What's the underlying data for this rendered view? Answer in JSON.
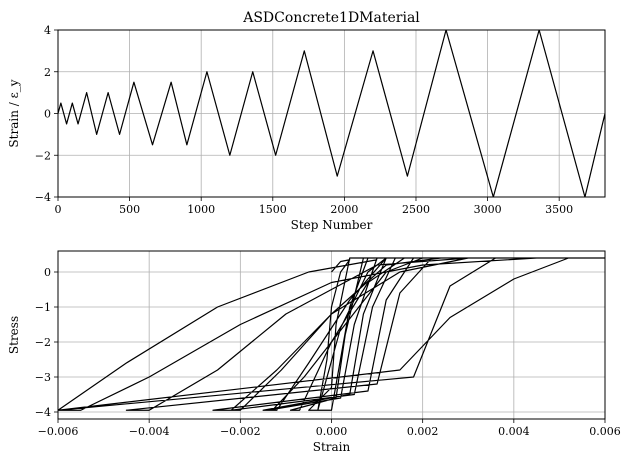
{
  "chart_data": [
    {
      "type": "line",
      "title": "ASDConcrete1DMaterial",
      "xlabel": "Step Number",
      "ylabel": "Strain / ε_y",
      "xlim": [
        0,
        3820
      ],
      "ylim": [
        -4,
        4
      ],
      "xticks": [
        0,
        500,
        1000,
        1500,
        2000,
        2500,
        3000,
        3500
      ],
      "xtick_labels": [
        "0",
        "500",
        "1000",
        "1500",
        "2000",
        "2500",
        "3000",
        "3500"
      ],
      "yticks": [
        -4,
        -2,
        0,
        2,
        4
      ],
      "ytick_labels": [
        "−4",
        "−2",
        "0",
        "2",
        "4"
      ],
      "grid": true,
      "series": [
        {
          "x": [
            0,
            20,
            60,
            100,
            140,
            200,
            270,
            350,
            430,
            530,
            660,
            790,
            900,
            1040,
            1200,
            1360,
            1520,
            1720,
            1950,
            2200,
            2440,
            2710,
            3040,
            3360,
            3680,
            3820
          ],
          "y": [
            0,
            0.5,
            -0.5,
            0.5,
            -0.5,
            1.0,
            -1.0,
            1.0,
            -1.0,
            1.5,
            -1.5,
            1.5,
            -1.5,
            2.0,
            -2.0,
            2.0,
            -2.0,
            3.0,
            -3.0,
            3.0,
            -3.0,
            4.0,
            -4.0,
            4.0,
            -4.0,
            0.0
          ]
        }
      ]
    },
    {
      "type": "line",
      "title": "",
      "xlabel": "Strain",
      "ylabel": "Stress",
      "xlim": [
        -0.006,
        0.006
      ],
      "ylim": [
        -4.2,
        0.6
      ],
      "xticks": [
        -0.006,
        -0.004,
        -0.002,
        0.0,
        0.002,
        0.004,
        0.006
      ],
      "xtick_labels": [
        "−0.006",
        "−0.004",
        "−0.002",
        "0.000",
        "0.002",
        "0.004",
        "0.006"
      ],
      "yticks": [
        -4,
        -3,
        -2,
        -1,
        0
      ],
      "ytick_labels": [
        "−4",
        "−3",
        "−2",
        "−1",
        "0"
      ],
      "grid": true,
      "series": [
        {
          "x": [
            0.0,
            0.0002,
            0.0004,
            0.0002,
            0.0,
            -0.0001,
            -0.0003,
            0.0,
            0.0004,
            0.0008,
            0.0004,
            0.0001,
            0.0,
            -0.0005,
            -0.0003,
            0.0002,
            0.0008,
            0.0012,
            0.0007,
            0.0003,
            0.0001,
            -0.0009,
            -0.0007,
            0.0,
            0.0008,
            0.0016,
            0.001,
            0.0005,
            0.0002,
            -0.0014,
            -0.0012,
            -0.0005,
            0.0004,
            0.0012,
            0.0018,
            0.0012,
            0.0007,
            0.0004,
            -0.0015,
            -0.0013,
            -0.0006,
            0.0003,
            0.0012,
            0.002,
            0.0014,
            0.0009,
            0.0005,
            -0.0022,
            -0.002,
            -0.0011,
            0.0,
            0.0012,
            0.0024,
            0.0018,
            0.0012,
            0.0008,
            -0.0026,
            -0.0022,
            -0.0012,
            0.0,
            0.0015,
            0.003,
            0.0022,
            0.0015,
            0.001,
            -0.0045,
            -0.004,
            -0.0025,
            -0.001,
            0.001,
            0.003,
            0.0045,
            0.0036,
            0.0026,
            0.0018,
            -0.006,
            -0.0055,
            -0.004,
            -0.002,
            0.0,
            0.002,
            0.0045,
            0.006,
            0.0052,
            0.004,
            0.0026,
            0.0015,
            -0.006,
            -0.0045,
            -0.0025,
            -0.0005,
            0.001
          ],
          "y": [
            0.0,
            0.3,
            0.35,
            0.0,
            -1.0,
            -2.5,
            -3.95,
            -3.95,
            -1.0,
            0.4,
            0.4,
            -1.5,
            -3.3,
            -3.95,
            -3.95,
            -1.6,
            0.0,
            0.4,
            0.4,
            -1.8,
            -3.6,
            -3.95,
            -3.95,
            -2.0,
            -0.3,
            0.4,
            0.4,
            -1.5,
            -3.6,
            -3.95,
            -3.95,
            -2.6,
            -0.8,
            0.4,
            0.4,
            0.4,
            -1.2,
            -3.5,
            -3.95,
            -3.95,
            -3.0,
            -1.5,
            0.0,
            0.4,
            0.4,
            -1.0,
            -3.5,
            -3.95,
            -3.95,
            -2.8,
            -1.2,
            0.2,
            0.4,
            0.4,
            -0.8,
            -3.4,
            -3.95,
            -3.95,
            -2.8,
            -1.2,
            0.0,
            0.4,
            0.4,
            -0.6,
            -3.2,
            -3.95,
            -3.95,
            -2.8,
            -1.2,
            0.2,
            0.4,
            0.4,
            0.4,
            -0.4,
            -3.0,
            -3.95,
            -3.95,
            -3.0,
            -1.5,
            -0.3,
            0.2,
            0.4,
            0.4,
            0.4,
            -0.2,
            -1.3,
            -2.8,
            -3.95,
            -2.6,
            -1.0,
            0.0,
            0.35
          ]
        }
      ]
    }
  ]
}
